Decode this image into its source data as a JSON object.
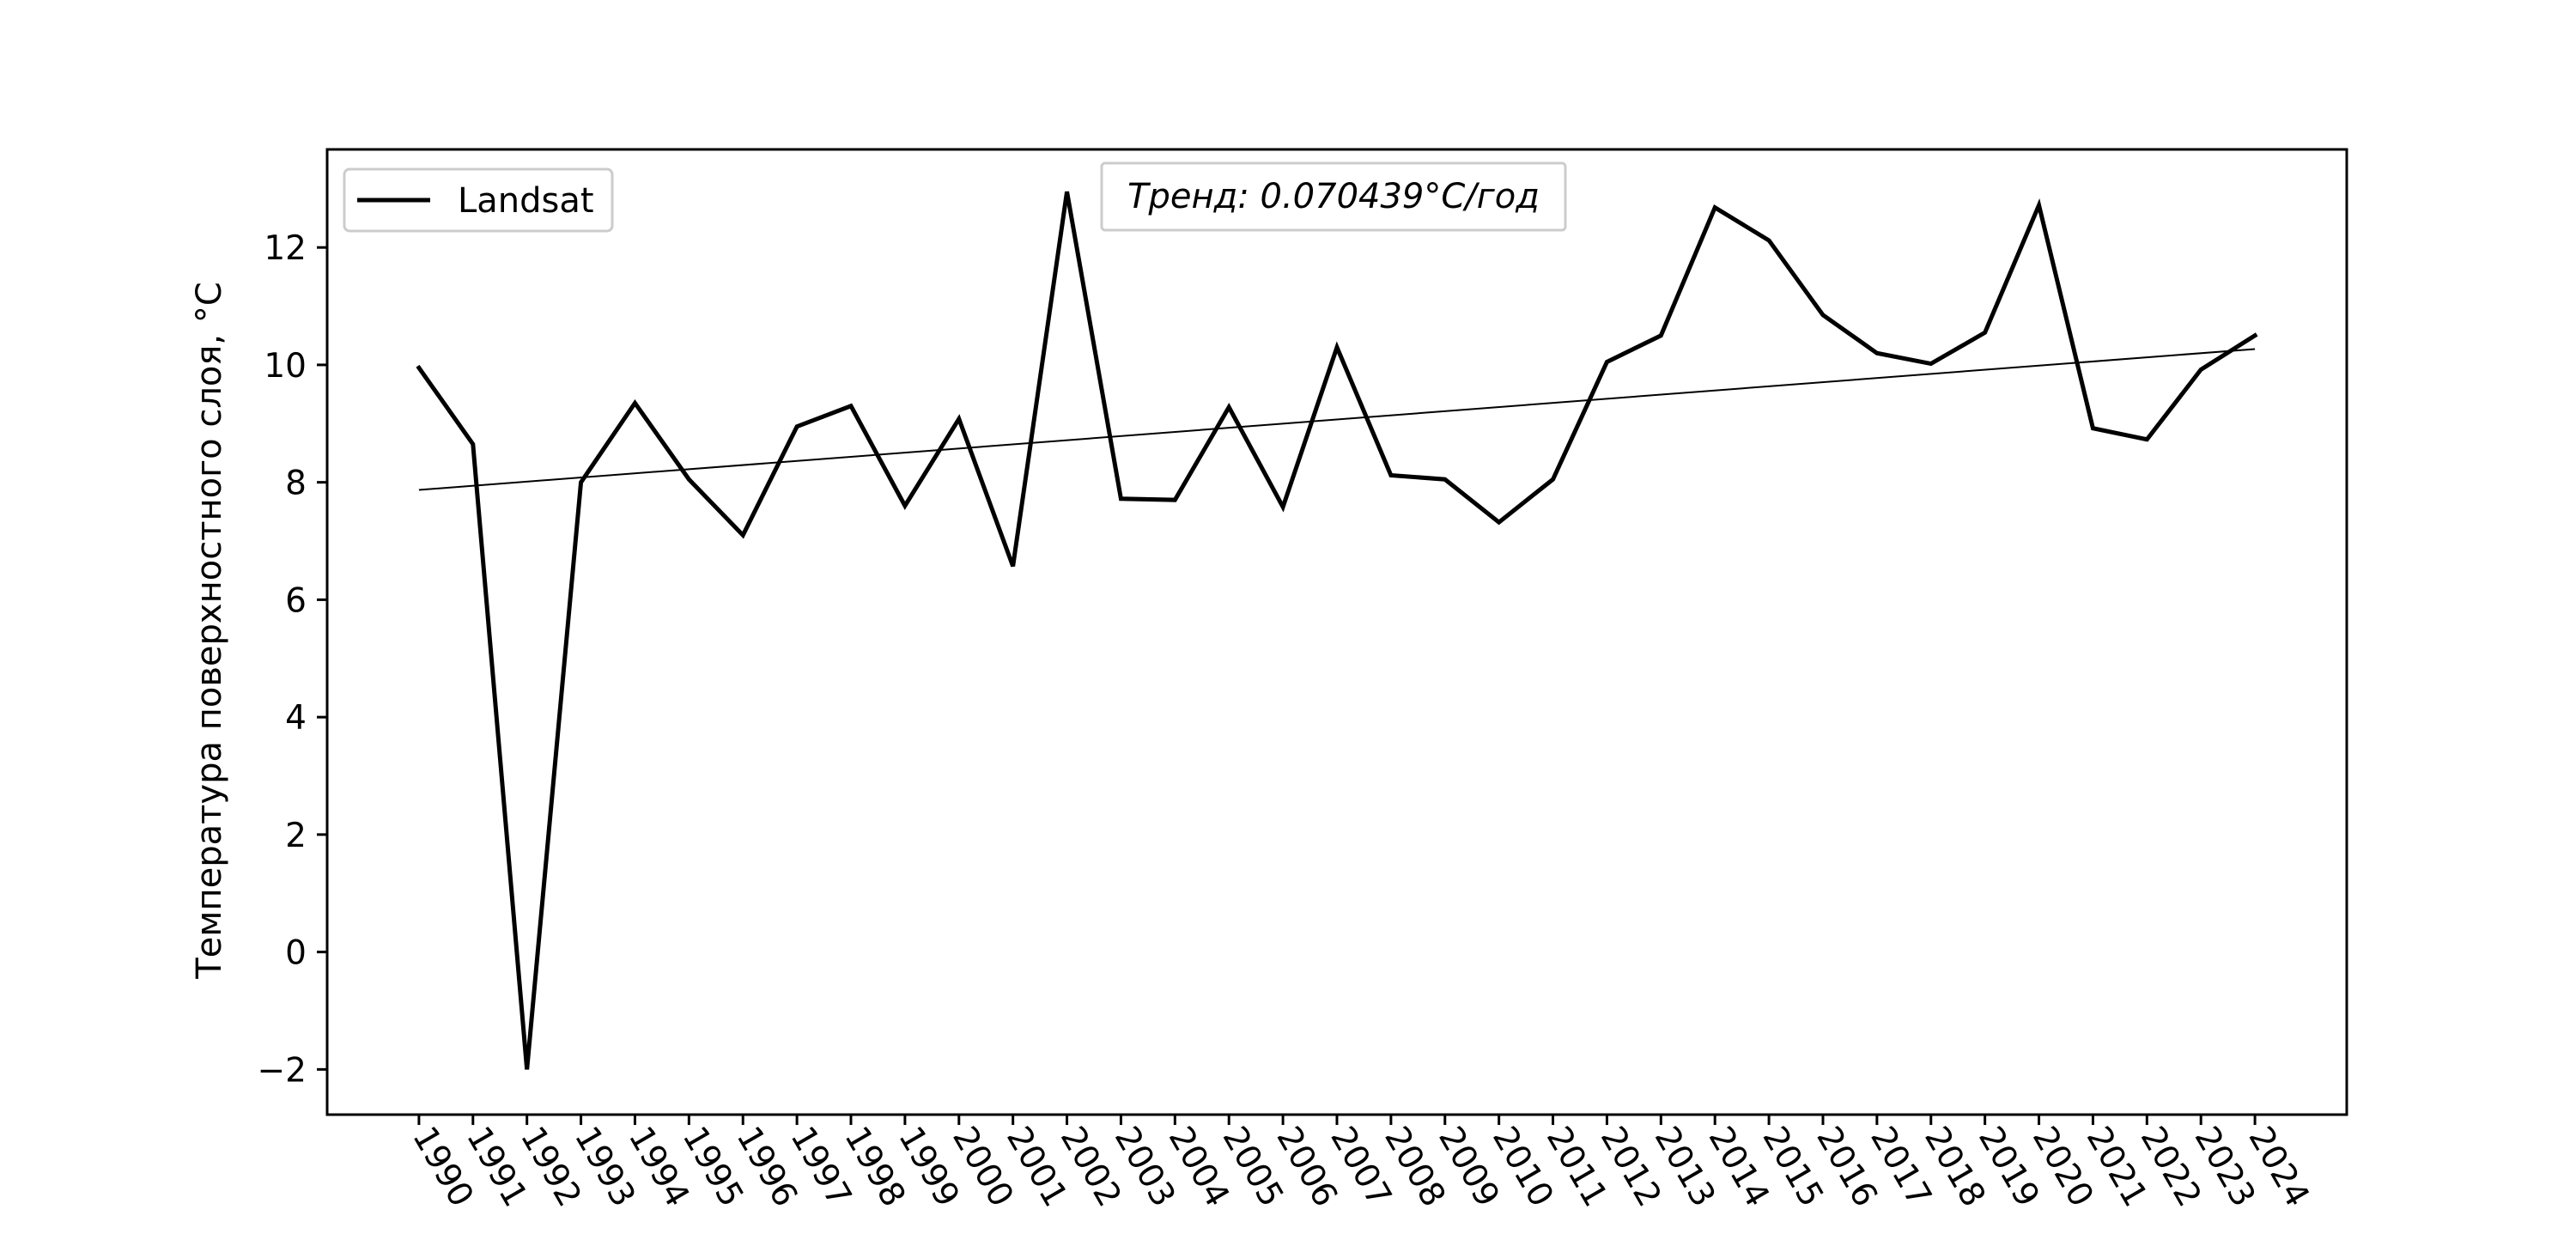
{
  "chart_data": {
    "type": "line",
    "title": "",
    "xlabel": "",
    "ylabel": "Температура поверхностного слоя, °C",
    "x": [
      1990,
      1991,
      1992,
      1993,
      1994,
      1995,
      1996,
      1997,
      1998,
      1999,
      2000,
      2001,
      2002,
      2003,
      2004,
      2005,
      2006,
      2007,
      2008,
      2009,
      2010,
      2011,
      2012,
      2013,
      2014,
      2015,
      2016,
      2017,
      2018,
      2019,
      2020,
      2021,
      2022,
      2023,
      2024
    ],
    "xticks": [
      "1990",
      "1991",
      "1992",
      "1993",
      "1994",
      "1995",
      "1996",
      "1997",
      "1998",
      "1999",
      "2000",
      "2001",
      "2002",
      "2003",
      "2004",
      "2005",
      "2006",
      "2007",
      "2008",
      "2009",
      "2010",
      "2011",
      "2012",
      "2013",
      "2014",
      "2015",
      "2016",
      "2017",
      "2018",
      "2019",
      "2020",
      "2021",
      "2022",
      "2023",
      "2024"
    ],
    "yticks": [
      "−2",
      "0",
      "2",
      "4",
      "6",
      "8",
      "10",
      "12"
    ],
    "ytick_values": [
      -2,
      0,
      2,
      4,
      6,
      8,
      10,
      12
    ],
    "xlim": [
      1988.3,
      2025.7
    ],
    "ylim": [
      -2.77,
      13.67
    ],
    "series": [
      {
        "name": "Landsat",
        "color": "#000000",
        "values": [
          9.95,
          8.65,
          -2.0,
          8.0,
          9.35,
          8.05,
          7.1,
          8.95,
          9.3,
          7.6,
          9.08,
          6.57,
          12.95,
          7.72,
          7.7,
          9.28,
          7.58,
          10.3,
          8.12,
          8.05,
          7.32,
          8.05,
          10.05,
          10.5,
          12.68,
          12.12,
          10.85,
          10.2,
          10.02,
          10.55,
          12.72,
          8.92,
          8.73,
          9.92,
          10.5
        ]
      }
    ],
    "trend": {
      "label": "$Тренд: 0.070439°C/год$",
      "display": "Тренд: 0.070439°C/год",
      "start": [
        1990,
        7.87
      ],
      "end": [
        2024,
        10.27
      ],
      "color": "#000000"
    },
    "legend": {
      "position": "top-left",
      "entries": [
        "Landsat"
      ]
    },
    "grid": false
  }
}
